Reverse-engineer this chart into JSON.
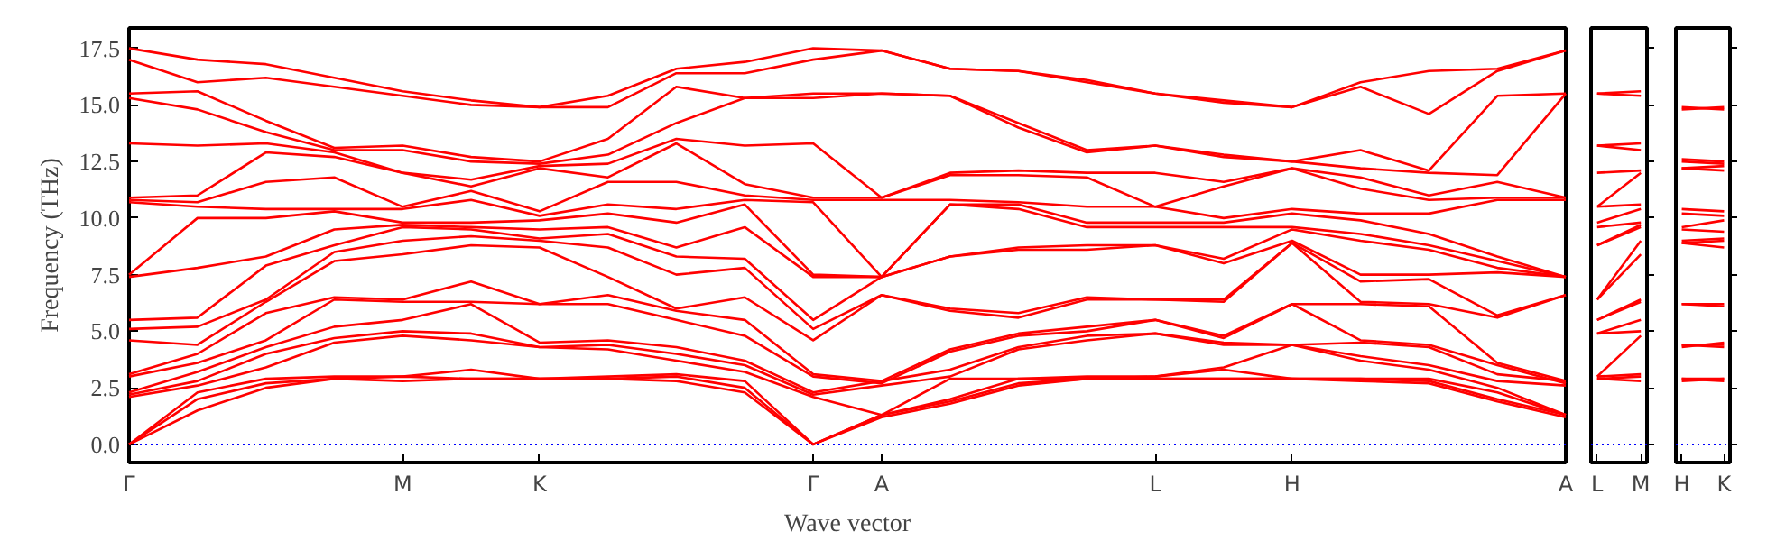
{
  "chart_data": [
    {
      "type": "line",
      "ylabel": "Frequency (THz)",
      "xlabel": "Wave vector",
      "ylim": [
        -0.8,
        18.4
      ],
      "categories": [
        "Γ",
        null,
        null,
        null,
        "M",
        null,
        "K",
        null,
        null,
        null,
        "Γ",
        "A",
        null,
        null,
        null,
        "L",
        null,
        "H",
        null,
        null,
        null,
        "A"
      ],
      "yticks": [
        {
          "value": 0,
          "label": "0.0"
        },
        {
          "value": 2.5,
          "label": "2.5"
        },
        {
          "value": 5,
          "label": "5.0"
        },
        {
          "value": 7.5,
          "label": "7.5"
        },
        {
          "value": 10,
          "label": "10.0"
        },
        {
          "value": 12.5,
          "label": "12.5"
        },
        {
          "value": 15,
          "label": "15.0"
        },
        {
          "value": 17.5,
          "label": "17.5"
        }
      ],
      "ref_lines": [
        {
          "axis": "y",
          "value": 0,
          "color": "#0000ff",
          "line_style": "dotted"
        }
      ],
      "series": [
        {
          "color": "#ff0000",
          "values": [
            0,
            1.5,
            2.5,
            2.9,
            2.8,
            2.9,
            2.9,
            2.9,
            2.8,
            2.3,
            0,
            1.2,
            1.8,
            2.6,
            2.9,
            2.9,
            2.9,
            2.9,
            2.8,
            2.7,
            1.9,
            1.2
          ]
        },
        {
          "color": "#ff0000",
          "values": [
            0,
            2.0,
            2.7,
            2.9,
            3.0,
            2.9,
            2.9,
            2.9,
            3.0,
            2.5,
            0,
            1.3,
            1.9,
            2.7,
            2.9,
            2.9,
            2.9,
            2.9,
            2.9,
            2.8,
            2.0,
            1.3
          ]
        },
        {
          "color": "#ff0000",
          "values": [
            0,
            2.3,
            2.9,
            3.0,
            3.0,
            3.3,
            2.9,
            3.0,
            3.1,
            2.8,
            0,
            1.3,
            2.0,
            2.9,
            2.9,
            3.0,
            3.3,
            2.9,
            2.9,
            2.9,
            2.3,
            1.3
          ]
        },
        {
          "color": "#ff0000",
          "values": [
            2.1,
            2.6,
            3.4,
            4.5,
            4.8,
            4.6,
            4.3,
            4.2,
            3.7,
            3.2,
            2.1,
            1.3,
            2.9,
            2.9,
            3.0,
            3.0,
            3.4,
            4.4,
            3.7,
            3.3,
            2.5,
            1.3
          ]
        },
        {
          "color": "#ff0000",
          "values": [
            2.2,
            2.8,
            4.0,
            4.7,
            5.0,
            4.9,
            4.3,
            4.4,
            4.0,
            3.5,
            2.2,
            2.6,
            3.0,
            4.2,
            4.6,
            4.9,
            4.4,
            4.4,
            3.9,
            3.5,
            2.8,
            2.6
          ]
        },
        {
          "color": "#ff0000",
          "values": [
            2.3,
            3.2,
            4.3,
            5.2,
            5.5,
            6.2,
            4.5,
            4.6,
            4.3,
            3.7,
            2.3,
            2.8,
            3.3,
            4.3,
            4.8,
            4.9,
            4.5,
            4.4,
            4.5,
            4.3,
            3.1,
            2.8
          ]
        },
        {
          "color": "#ff0000",
          "values": [
            3.0,
            3.6,
            4.6,
            6.4,
            6.3,
            6.3,
            6.2,
            6.2,
            5.5,
            4.8,
            3.0,
            2.7,
            4.1,
            4.8,
            5.0,
            5.5,
            4.7,
            6.2,
            4.6,
            4.4,
            3.5,
            2.7
          ]
        },
        {
          "color": "#ff0000",
          "values": [
            3.1,
            4.0,
            5.8,
            6.5,
            6.4,
            7.2,
            6.2,
            6.6,
            5.9,
            5.5,
            3.1,
            2.8,
            4.2,
            4.9,
            5.2,
            5.5,
            4.8,
            6.2,
            6.2,
            6.1,
            3.6,
            2.8
          ]
        },
        {
          "color": "#ff0000",
          "values": [
            4.6,
            4.4,
            6.3,
            8.1,
            8.4,
            8.8,
            8.7,
            7.4,
            6.0,
            6.5,
            4.6,
            6.6,
            5.9,
            5.6,
            6.4,
            6.4,
            6.3,
            8.9,
            6.3,
            6.2,
            5.6,
            6.6
          ]
        },
        {
          "color": "#ff0000",
          "values": [
            5.1,
            5.2,
            6.4,
            8.5,
            9.0,
            9.2,
            9.0,
            8.7,
            7.5,
            7.8,
            5.1,
            6.6,
            6.0,
            5.8,
            6.5,
            6.4,
            6.4,
            8.9,
            7.2,
            7.3,
            5.7,
            6.6
          ]
        },
        {
          "color": "#ff0000",
          "values": [
            5.5,
            5.6,
            7.9,
            8.8,
            9.6,
            9.5,
            9.1,
            9.3,
            8.3,
            8.2,
            5.5,
            7.4,
            8.3,
            8.6,
            8.6,
            8.8,
            8.0,
            9.0,
            7.5,
            7.5,
            7.6,
            7.4
          ]
        },
        {
          "color": "#ff0000",
          "values": [
            7.4,
            7.8,
            8.3,
            9.5,
            9.7,
            9.6,
            9.5,
            9.6,
            8.7,
            9.6,
            7.4,
            7.4,
            8.3,
            8.7,
            8.8,
            8.8,
            8.2,
            9.5,
            9.0,
            8.6,
            7.8,
            7.4
          ]
        },
        {
          "color": "#ff0000",
          "values": [
            7.5,
            10.0,
            10.0,
            10.3,
            9.8,
            9.8,
            9.9,
            10.2,
            9.8,
            10.6,
            7.5,
            7.4,
            10.6,
            10.4,
            9.6,
            9.6,
            9.6,
            9.6,
            9.3,
            8.8,
            8.1,
            7.4
          ]
        },
        {
          "color": "#ff0000",
          "values": [
            10.7,
            10.5,
            10.4,
            10.4,
            10.4,
            10.8,
            10.1,
            10.6,
            10.4,
            10.8,
            10.7,
            7.4,
            10.6,
            10.6,
            9.8,
            9.8,
            9.8,
            10.2,
            9.9,
            9.3,
            8.3,
            7.4
          ]
        },
        {
          "color": "#ff0000",
          "values": [
            10.8,
            10.7,
            11.6,
            11.8,
            10.5,
            11.2,
            10.3,
            11.6,
            11.6,
            11.0,
            10.8,
            10.8,
            10.8,
            10.7,
            10.5,
            10.5,
            10.0,
            10.4,
            10.2,
            10.2,
            10.8,
            10.8
          ]
        },
        {
          "color": "#ff0000",
          "values": [
            10.9,
            11.0,
            12.9,
            12.7,
            12.0,
            11.4,
            12.2,
            11.8,
            13.3,
            11.5,
            10.9,
            10.9,
            11.9,
            11.9,
            11.8,
            10.5,
            11.4,
            12.2,
            11.3,
            10.8,
            10.9,
            10.9
          ]
        },
        {
          "color": "#ff0000",
          "values": [
            13.3,
            13.2,
            13.3,
            12.9,
            12.0,
            11.7,
            12.3,
            12.4,
            13.5,
            13.2,
            13.3,
            10.9,
            12.0,
            12.1,
            12.0,
            12.0,
            11.6,
            12.2,
            11.8,
            11.0,
            11.6,
            10.9
          ]
        },
        {
          "color": "#ff0000",
          "values": [
            15.3,
            14.8,
            13.8,
            13.0,
            13.0,
            12.5,
            12.4,
            12.8,
            14.2,
            15.3,
            15.3,
            15.5,
            15.4,
            14.0,
            12.9,
            13.2,
            12.7,
            12.5,
            12.2,
            12.0,
            11.9,
            15.5
          ]
        },
        {
          "color": "#ff0000",
          "values": [
            15.5,
            15.6,
            14.3,
            13.1,
            13.2,
            12.7,
            12.5,
            13.5,
            15.8,
            15.3,
            15.5,
            15.5,
            15.4,
            14.2,
            13.0,
            13.2,
            12.8,
            12.5,
            13.0,
            12.1,
            15.4,
            15.5
          ]
        },
        {
          "color": "#ff0000",
          "values": [
            17.0,
            16.0,
            16.2,
            15.8,
            15.4,
            15.0,
            14.9,
            14.9,
            16.4,
            16.4,
            17.0,
            17.4,
            16.6,
            16.5,
            16.0,
            15.5,
            15.1,
            14.9,
            15.8,
            14.6,
            16.5,
            17.4
          ]
        },
        {
          "color": "#ff0000",
          "values": [
            17.5,
            17.0,
            16.8,
            16.2,
            15.6,
            15.2,
            14.9,
            15.4,
            16.6,
            16.9,
            17.5,
            17.4,
            16.6,
            16.5,
            16.1,
            15.5,
            15.2,
            14.9,
            16.0,
            16.5,
            16.6,
            17.4
          ]
        }
      ]
    },
    {
      "type": "line",
      "ylim": [
        -0.8,
        18.4
      ],
      "tick_labels": "x",
      "categories": [
        "L",
        "M"
      ],
      "yticks": [
        {
          "value": 0,
          "label": null
        },
        {
          "value": 2.5,
          "label": null
        },
        {
          "value": 5,
          "label": null
        },
        {
          "value": 7.5,
          "label": null
        },
        {
          "value": 10,
          "label": null
        },
        {
          "value": 12.5,
          "label": null
        },
        {
          "value": 15,
          "label": null
        },
        {
          "value": 17.5,
          "label": null
        }
      ],
      "ref_lines": [
        {
          "axis": "y",
          "value": 0,
          "color": "#0000ff",
          "line_style": "dotted"
        }
      ],
      "series": [
        {
          "color": "#ff0000",
          "values": [
            2.9,
            2.8
          ]
        },
        {
          "color": "#ff0000",
          "values": [
            2.9,
            3.0
          ]
        },
        {
          "color": "#ff0000",
          "values": [
            3.0,
            3.1
          ]
        },
        {
          "color": "#ff0000",
          "values": [
            3.0,
            4.8
          ]
        },
        {
          "color": "#ff0000",
          "values": [
            4.9,
            5.0
          ]
        },
        {
          "color": "#ff0000",
          "values": [
            4.9,
            5.5
          ]
        },
        {
          "color": "#ff0000",
          "values": [
            5.5,
            6.3
          ]
        },
        {
          "color": "#ff0000",
          "values": [
            5.5,
            6.4
          ]
        },
        {
          "color": "#ff0000",
          "values": [
            6.4,
            8.4
          ]
        },
        {
          "color": "#ff0000",
          "values": [
            6.4,
            9.0
          ]
        },
        {
          "color": "#ff0000",
          "values": [
            8.8,
            9.6
          ]
        },
        {
          "color": "#ff0000",
          "values": [
            8.8,
            9.7
          ]
        },
        {
          "color": "#ff0000",
          "values": [
            9.6,
            9.8
          ]
        },
        {
          "color": "#ff0000",
          "values": [
            9.8,
            10.4
          ]
        },
        {
          "color": "#ff0000",
          "values": [
            10.5,
            10.6
          ]
        },
        {
          "color": "#ff0000",
          "values": [
            10.5,
            12.0
          ]
        },
        {
          "color": "#ff0000",
          "values": [
            12.0,
            12.1
          ]
        },
        {
          "color": "#ff0000",
          "values": [
            13.2,
            13.0
          ]
        },
        {
          "color": "#ff0000",
          "values": [
            13.2,
            13.3
          ]
        },
        {
          "color": "#ff0000",
          "values": [
            15.5,
            15.4
          ]
        },
        {
          "color": "#ff0000",
          "values": [
            15.5,
            15.6
          ]
        }
      ]
    },
    {
      "type": "line",
      "ylim": [
        -0.8,
        18.4
      ],
      "tick_labels": "x",
      "categories": [
        "H",
        "K"
      ],
      "yticks": [
        {
          "value": 0,
          "label": null
        },
        {
          "value": 2.5,
          "label": null
        },
        {
          "value": 5,
          "label": null
        },
        {
          "value": 7.5,
          "label": null
        },
        {
          "value": 10,
          "label": null
        },
        {
          "value": 12.5,
          "label": null
        },
        {
          "value": 15,
          "label": null
        },
        {
          "value": 17.5,
          "label": null
        }
      ],
      "ref_lines": [
        {
          "axis": "y",
          "value": 0,
          "color": "#0000ff",
          "line_style": "dotted"
        }
      ],
      "series": [
        {
          "color": "#ff0000",
          "values": [
            2.9,
            2.8
          ]
        },
        {
          "color": "#ff0000",
          "values": [
            2.9,
            2.9
          ]
        },
        {
          "color": "#ff0000",
          "values": [
            2.8,
            2.9
          ]
        },
        {
          "color": "#ff0000",
          "values": [
            4.4,
            4.3
          ]
        },
        {
          "color": "#ff0000",
          "values": [
            4.4,
            4.4
          ]
        },
        {
          "color": "#ff0000",
          "values": [
            4.3,
            4.5
          ]
        },
        {
          "color": "#ff0000",
          "values": [
            6.2,
            6.1
          ]
        },
        {
          "color": "#ff0000",
          "values": [
            6.2,
            6.2
          ]
        },
        {
          "color": "#ff0000",
          "values": [
            8.9,
            8.7
          ]
        },
        {
          "color": "#ff0000",
          "values": [
            8.9,
            9.0
          ]
        },
        {
          "color": "#ff0000",
          "values": [
            9.0,
            9.1
          ]
        },
        {
          "color": "#ff0000",
          "values": [
            9.5,
            9.4
          ]
        },
        {
          "color": "#ff0000",
          "values": [
            9.6,
            9.9
          ]
        },
        {
          "color": "#ff0000",
          "values": [
            10.2,
            10.1
          ]
        },
        {
          "color": "#ff0000",
          "values": [
            10.4,
            10.3
          ]
        },
        {
          "color": "#ff0000",
          "values": [
            12.2,
            12.1
          ]
        },
        {
          "color": "#ff0000",
          "values": [
            12.2,
            12.3
          ]
        },
        {
          "color": "#ff0000",
          "values": [
            12.5,
            12.4
          ]
        },
        {
          "color": "#ff0000",
          "values": [
            12.6,
            12.5
          ]
        },
        {
          "color": "#ff0000",
          "values": [
            14.9,
            14.8
          ]
        },
        {
          "color": "#ff0000",
          "values": [
            14.8,
            14.9
          ]
        }
      ]
    }
  ]
}
